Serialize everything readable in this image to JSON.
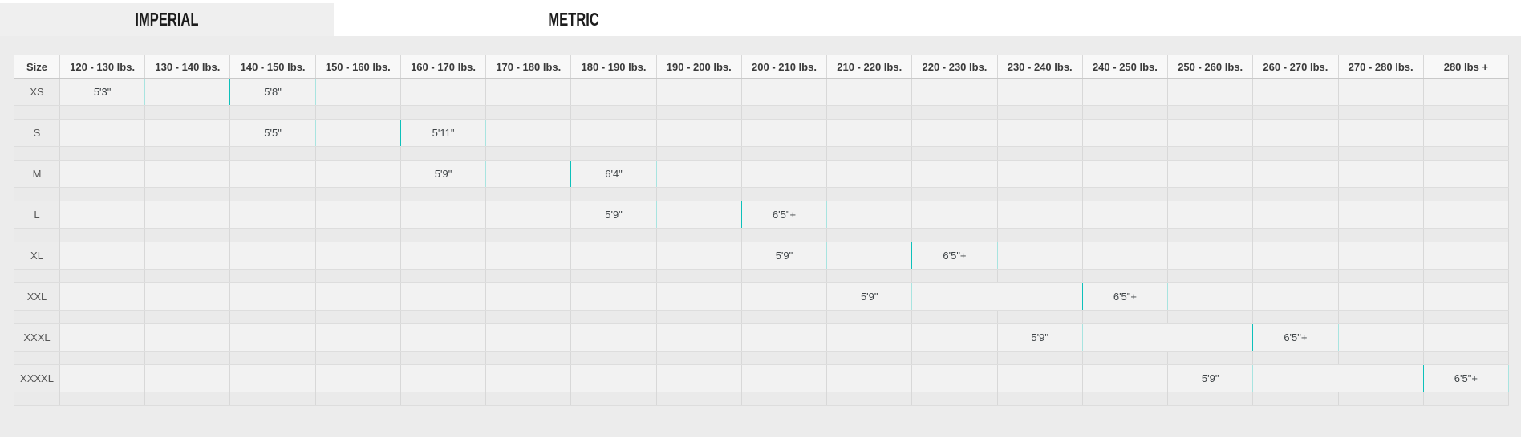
{
  "tabs": [
    {
      "label": "IMPERIAL",
      "active": true
    },
    {
      "label": "METRIC",
      "active": false
    }
  ],
  "table": {
    "size_header": "Size",
    "weight_headers": [
      "120 - 130 lbs.",
      "130 - 140 lbs.",
      "140 - 150 lbs.",
      "150 - 160 lbs.",
      "160 - 170 lbs.",
      "170 - 180 lbs.",
      "180 - 190 lbs.",
      "190 - 200 lbs.",
      "200 - 210 lbs.",
      "210 - 220 lbs.",
      "220 - 230 lbs.",
      "230 - 240 lbs.",
      "240 - 250 lbs.",
      "250 - 260 lbs.",
      "260 - 270 lbs.",
      "270 - 280 lbs.",
      "280 lbs +"
    ],
    "rows": [
      {
        "size": "XS",
        "cells": [
          {
            "col": 1,
            "span": 1,
            "variant": "light",
            "label": "5'3\""
          },
          {
            "col": 2,
            "span": 1,
            "variant": "dark",
            "label": ""
          },
          {
            "col": 3,
            "span": 1,
            "variant": "light",
            "label": "5'8\""
          }
        ]
      },
      {
        "size": "S",
        "cells": [
          {
            "col": 3,
            "span": 1,
            "variant": "light",
            "label": "5'5\""
          },
          {
            "col": 4,
            "span": 1,
            "variant": "dark",
            "label": ""
          },
          {
            "col": 5,
            "span": 1,
            "variant": "light",
            "label": "5'11\""
          }
        ]
      },
      {
        "size": "M",
        "cells": [
          {
            "col": 5,
            "span": 1,
            "variant": "light",
            "label": "5'9\""
          },
          {
            "col": 6,
            "span": 1,
            "variant": "dark",
            "label": ""
          },
          {
            "col": 7,
            "span": 1,
            "variant": "light",
            "label": "6'4\""
          }
        ]
      },
      {
        "size": "L",
        "cells": [
          {
            "col": 7,
            "span": 1,
            "variant": "light",
            "label": "5'9\""
          },
          {
            "col": 8,
            "span": 1,
            "variant": "dark",
            "label": ""
          },
          {
            "col": 9,
            "span": 1,
            "variant": "light",
            "label": "6'5\"+"
          }
        ]
      },
      {
        "size": "XL",
        "cells": [
          {
            "col": 9,
            "span": 1,
            "variant": "light",
            "label": "5'9\""
          },
          {
            "col": 10,
            "span": 1,
            "variant": "dark",
            "label": ""
          },
          {
            "col": 11,
            "span": 1,
            "variant": "light",
            "label": "6'5\"+"
          }
        ]
      },
      {
        "size": "XXL",
        "cells": [
          {
            "col": 10,
            "span": 1,
            "variant": "light",
            "label": "5'9\""
          },
          {
            "col": 11,
            "span": 2,
            "variant": "dark",
            "label": ""
          },
          {
            "col": 13,
            "span": 1,
            "variant": "light",
            "label": "6'5\"+"
          }
        ]
      },
      {
        "size": "XXXL",
        "cells": [
          {
            "col": 12,
            "span": 1,
            "variant": "light",
            "label": "5'9\""
          },
          {
            "col": 13,
            "span": 2,
            "variant": "dark",
            "label": ""
          },
          {
            "col": 15,
            "span": 1,
            "variant": "light",
            "label": "6'5\"+"
          }
        ]
      },
      {
        "size": "XXXXL",
        "cells": [
          {
            "col": 14,
            "span": 1,
            "variant": "light",
            "label": "5'9\""
          },
          {
            "col": 15,
            "span": 2,
            "variant": "dark",
            "label": ""
          },
          {
            "col": 17,
            "span": 1,
            "variant": "light",
            "label": "6'5\"+"
          }
        ]
      }
    ],
    "weight_column_count": 17
  },
  "colors": {
    "highlight_light": "#a8e4e0",
    "highlight_dark": "#0dc0ba"
  }
}
